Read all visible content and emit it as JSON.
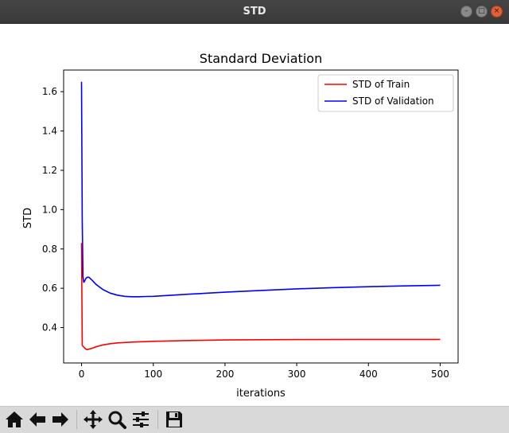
{
  "window": {
    "title": "STD",
    "minimize_glyph": "–",
    "maximize_glyph": "□",
    "close_glyph": "×"
  },
  "toolbar": {
    "icons": [
      "home-icon",
      "back-arrow-icon",
      "forward-arrow-icon",
      "pan-icon",
      "zoom-icon",
      "configure-subplots-icon",
      "save-icon"
    ]
  },
  "chart_data": {
    "type": "line",
    "title": "Standard Deviation",
    "xlabel": "iterations",
    "ylabel": "STD",
    "xlim": [
      -25,
      525
    ],
    "ylim": [
      0.22,
      1.71
    ],
    "xticks": [
      "0",
      "100",
      "200",
      "300",
      "400",
      "500"
    ],
    "xtick_values": [
      0,
      100,
      200,
      300,
      400,
      500
    ],
    "yticks": [
      "0.4",
      "0.6",
      "0.8",
      "1.0",
      "1.2",
      "1.4",
      "1.6"
    ],
    "ytick_values": [
      0.4,
      0.6,
      0.8,
      1.0,
      1.2,
      1.4,
      1.6
    ],
    "grid": false,
    "legend_position": "top-right",
    "series": [
      {
        "name": "STD of Train",
        "color": "#ff0000",
        "x": [
          0,
          1,
          2,
          4,
          6,
          8,
          10,
          15,
          20,
          30,
          40,
          50,
          70,
          100,
          150,
          200,
          300,
          400,
          500
        ],
        "y": [
          0.83,
          0.31,
          0.305,
          0.297,
          0.29,
          0.288,
          0.29,
          0.295,
          0.302,
          0.312,
          0.318,
          0.322,
          0.326,
          0.33,
          0.334,
          0.337,
          0.339,
          0.34,
          0.34
        ]
      },
      {
        "name": "STD of Validation",
        "color": "#0000ff",
        "x": [
          0,
          1,
          2,
          3,
          4,
          6,
          8,
          10,
          12,
          15,
          20,
          30,
          40,
          50,
          60,
          70,
          80,
          90,
          100,
          150,
          200,
          250,
          300,
          350,
          400,
          450,
          500
        ],
        "y": [
          1.65,
          0.95,
          0.66,
          0.63,
          0.635,
          0.65,
          0.656,
          0.656,
          0.65,
          0.64,
          0.62,
          0.593,
          0.575,
          0.565,
          0.559,
          0.557,
          0.557,
          0.558,
          0.559,
          0.57,
          0.58,
          0.589,
          0.597,
          0.603,
          0.608,
          0.612,
          0.615
        ]
      }
    ]
  }
}
